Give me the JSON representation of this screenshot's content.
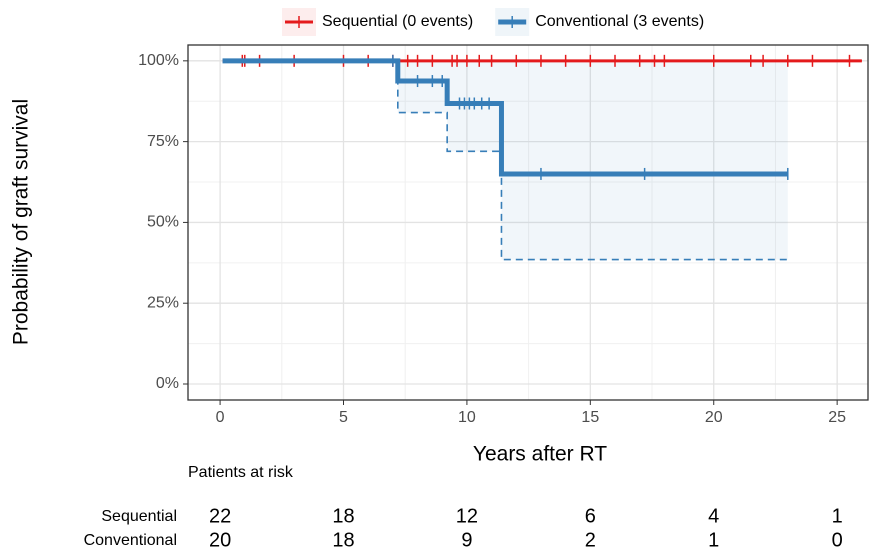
{
  "chart_data": {
    "type": "step",
    "x_label": "Years after RT",
    "y_label": "Probability of graft survival",
    "xlim": [
      -1.3,
      26.25
    ],
    "ylim": [
      -4.95,
      104.9
    ],
    "xticks": [
      0,
      5,
      10,
      15,
      20,
      25
    ],
    "yticks": [
      {
        "value": 0,
        "label": "0%"
      },
      {
        "value": 25,
        "label": "25%"
      },
      {
        "value": 50,
        "label": "50%"
      },
      {
        "value": 75,
        "label": "75%"
      },
      {
        "value": 100,
        "label": "100%"
      }
    ],
    "grid": true,
    "legend": "top",
    "series": [
      {
        "name": "Sequential (0 events)",
        "color": "#e41a1c",
        "x": [
          0.1,
          26
        ],
        "values": [
          100,
          100
        ],
        "ci_lower": {
          "x": [
            0.1,
            26
          ],
          "values": [
            100,
            100
          ]
        },
        "censor": {
          "x": [
            0.9,
            1.0,
            1.6,
            3.0,
            5.0,
            6.0,
            7.0,
            7.6,
            8.0,
            8.6,
            9.4,
            9.6,
            10.0,
            10.5,
            11.0,
            12.0,
            13.0,
            14.0,
            15.0,
            16.0,
            17.0,
            17.6,
            18.0,
            20.0,
            21.5,
            22.0,
            23.0,
            24.0,
            25.5
          ],
          "values": [
            100,
            100,
            100,
            100,
            100,
            100,
            100,
            100,
            100,
            100,
            100,
            100,
            100,
            100,
            100,
            100,
            100,
            100,
            100,
            100,
            100,
            100,
            100,
            100,
            100,
            100,
            100,
            100,
            100
          ]
        }
      },
      {
        "name": "Conventional (3 events)",
        "color": "#377eb8",
        "x": [
          0.1,
          7.2,
          9.2,
          11.4,
          23
        ],
        "values": [
          100,
          93.75,
          86.8,
          65,
          65
        ],
        "ci_lower": {
          "x": [
            0.1,
            7.2,
            9.2,
            11.4,
            23
          ],
          "values": [
            100,
            84,
            72,
            38.5,
            38.5
          ]
        },
        "ci_upper": {
          "x": [
            0.1,
            7.2,
            9.2,
            11.4,
            23
          ],
          "values": [
            100,
            100,
            100,
            100,
            100
          ]
        },
        "censor": {
          "x": [
            7.0,
            8.0,
            8.6,
            9.0,
            9.7,
            9.9,
            10.1,
            10.3,
            10.6,
            10.9,
            13.0,
            17.2,
            23.0
          ],
          "values": [
            100,
            93.75,
            93.75,
            93.75,
            86.8,
            86.8,
            86.8,
            86.8,
            86.8,
            86.8,
            65,
            65,
            65
          ]
        }
      }
    ],
    "risk_table": {
      "title": "Patients at risk",
      "rows": [
        {
          "name": "Sequential",
          "counts": [
            22,
            18,
            12,
            6,
            4,
            1
          ]
        },
        {
          "name": "Conventional",
          "counts": [
            20,
            18,
            9,
            2,
            1,
            0
          ]
        }
      ]
    }
  }
}
